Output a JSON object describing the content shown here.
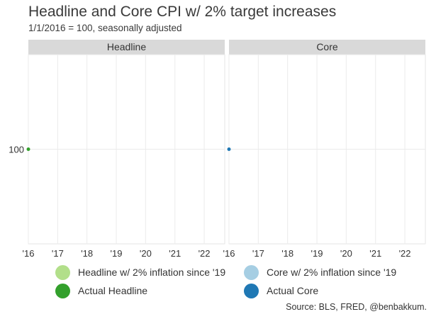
{
  "title": "Headline and Core CPI w/ 2% target increases",
  "subtitle": "1/1/2016 = 100, seasonally adjusted",
  "source": "Source: BLS, FRED, @benbakkum.",
  "colors": {
    "strip_bg": "#d9d9d9",
    "grid": "#ebebeb",
    "headline_target": "#b2df8a",
    "headline_actual": "#33a02c",
    "core_target": "#a6cee3",
    "core_actual": "#1f78b4"
  },
  "legend": [
    {
      "label": "Headline w/ 2% inflation since '19",
      "color": "#b2df8a"
    },
    {
      "label": "Core w/ 2% inflation since '19",
      "color": "#a6cee3"
    },
    {
      "label": "Actual Headline",
      "color": "#33a02c"
    },
    {
      "label": "Actual Core",
      "color": "#1f78b4"
    }
  ],
  "chart_data": {
    "type": "line",
    "title": "Headline and Core CPI w/ 2% target increases",
    "subtitle": "1/1/2016 = 100, seasonally adjusted",
    "xlabel": "",
    "ylabel": "",
    "x_ticks": [
      2016,
      2017,
      2018,
      2019,
      2020,
      2021,
      2022
    ],
    "x_tick_labels": [
      "'16",
      "'17",
      "'18",
      "'19",
      "'20",
      "'21",
      "'22"
    ],
    "xlim": [
      2016,
      2022.7
    ],
    "y_ticks": [
      100
    ],
    "ylim": [
      99,
      101
    ],
    "grid": true,
    "legend_position": "bottom",
    "panels": [
      {
        "name": "Headline",
        "series": [
          {
            "name": "Headline w/ 2% inflation since '19",
            "color": "#b2df8a",
            "x": [],
            "y": []
          },
          {
            "name": "Actual Headline",
            "color": "#33a02c",
            "x": [
              2016
            ],
            "y": [
              100
            ]
          }
        ]
      },
      {
        "name": "Core",
        "series": [
          {
            "name": "Core w/ 2% inflation since '19",
            "color": "#a6cee3",
            "x": [],
            "y": []
          },
          {
            "name": "Actual Core",
            "color": "#1f78b4",
            "x": [
              2016
            ],
            "y": [
              100
            ]
          }
        ]
      }
    ]
  }
}
